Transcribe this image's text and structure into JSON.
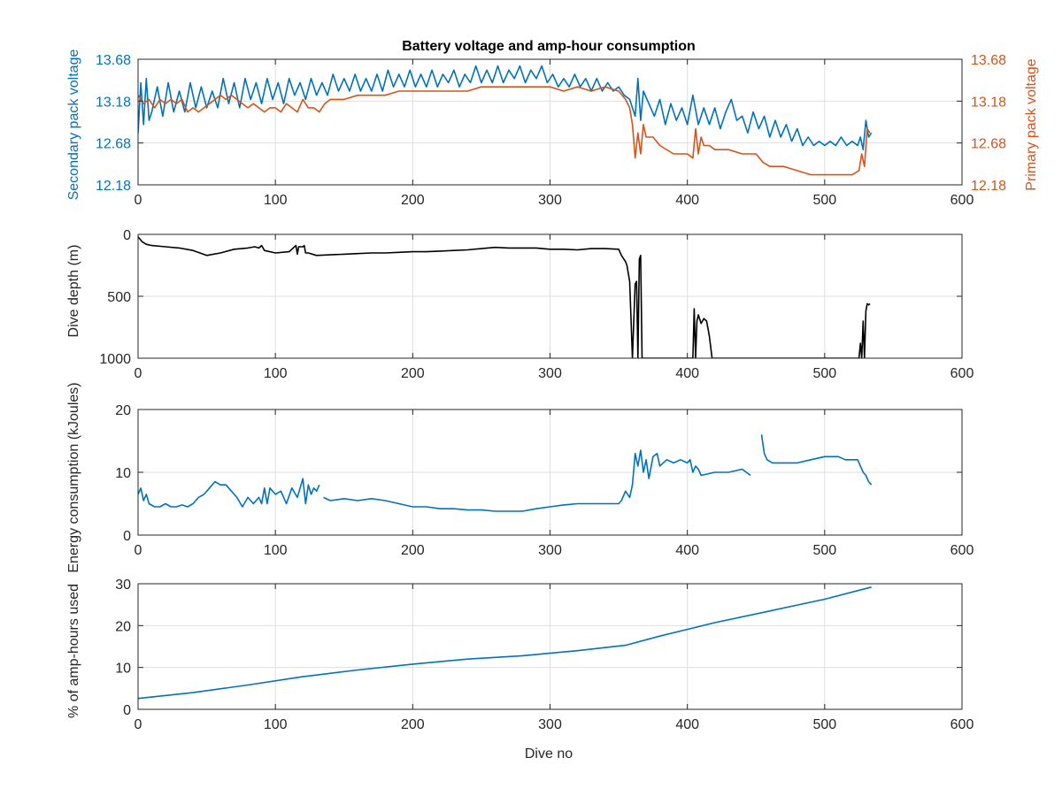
{
  "figure": {
    "title": "Battery voltage and amp-hour consumption",
    "xlabel": "Dive no"
  },
  "chart_data": [
    {
      "type": "line",
      "title": "Battery voltage and amp-hour consumption",
      "xlabel": "",
      "ylabel": "Secondary pack voltage",
      "ylabel_right": "Primary pack voltage",
      "xlim": [
        0,
        600
      ],
      "ylim": [
        12.18,
        13.68
      ],
      "xticks": [
        0,
        100,
        200,
        300,
        400,
        500,
        600
      ],
      "yticks": [
        12.18,
        12.68,
        13.18,
        13.68
      ],
      "yticks_right": [
        12.18,
        12.68,
        13.18,
        13.68
      ],
      "grid": true,
      "series": [
        {
          "axis": "left",
          "color": "#0072BD",
          "x": [
            0,
            2,
            4,
            6,
            8,
            10,
            14,
            18,
            22,
            26,
            30,
            34,
            38,
            42,
            46,
            50,
            54,
            58,
            62,
            66,
            70,
            74,
            78,
            82,
            86,
            90,
            94,
            98,
            102,
            106,
            110,
            114,
            118,
            122,
            126,
            130,
            134,
            138,
            142,
            146,
            150,
            154,
            158,
            162,
            166,
            170,
            174,
            178,
            182,
            186,
            190,
            194,
            198,
            202,
            206,
            210,
            214,
            218,
            222,
            226,
            230,
            234,
            238,
            242,
            246,
            250,
            254,
            258,
            262,
            266,
            270,
            274,
            278,
            282,
            286,
            290,
            294,
            298,
            302,
            306,
            310,
            314,
            318,
            322,
            326,
            330,
            334,
            338,
            342,
            346,
            350,
            354,
            358,
            362,
            364,
            366,
            368,
            372,
            376,
            380,
            384,
            388,
            392,
            396,
            400,
            404,
            408,
            412,
            416,
            420,
            424,
            428,
            432,
            436,
            440,
            444,
            448,
            452,
            456,
            460,
            464,
            468,
            472,
            476,
            480,
            484,
            488,
            492,
            496,
            500,
            504,
            508,
            512,
            516,
            520,
            524,
            526,
            528,
            530,
            532,
            534
          ],
          "y": [
            12.8,
            13.4,
            12.9,
            13.45,
            12.95,
            13.05,
            13.35,
            13.0,
            13.4,
            13.05,
            13.3,
            13.05,
            13.4,
            13.1,
            13.35,
            13.1,
            13.3,
            13.1,
            13.45,
            13.15,
            13.4,
            13.1,
            13.45,
            13.2,
            13.4,
            13.15,
            13.45,
            13.2,
            13.4,
            13.15,
            13.45,
            13.25,
            13.4,
            13.2,
            13.45,
            13.25,
            13.4,
            13.25,
            13.5,
            13.3,
            13.45,
            13.3,
            13.5,
            13.3,
            13.45,
            13.3,
            13.5,
            13.3,
            13.55,
            13.35,
            13.5,
            13.35,
            13.55,
            13.35,
            13.5,
            13.35,
            13.55,
            13.35,
            13.5,
            13.4,
            13.55,
            13.35,
            13.5,
            13.4,
            13.6,
            13.4,
            13.55,
            13.4,
            13.6,
            13.4,
            13.55,
            13.45,
            13.6,
            13.4,
            13.55,
            13.45,
            13.6,
            13.4,
            13.5,
            13.35,
            13.45,
            13.35,
            13.5,
            13.35,
            13.45,
            13.3,
            13.45,
            13.3,
            13.4,
            13.3,
            13.35,
            13.25,
            13.2,
            13.0,
            13.45,
            12.95,
            13.3,
            13.15,
            13.0,
            13.2,
            12.9,
            13.15,
            12.95,
            13.1,
            12.9,
            13.25,
            12.9,
            13.1,
            12.9,
            13.1,
            12.85,
            13.05,
            13.2,
            12.95,
            13.0,
            12.8,
            13.05,
            12.85,
            13.0,
            12.75,
            12.95,
            12.75,
            12.9,
            12.7,
            12.85,
            12.65,
            12.75,
            12.65,
            12.7,
            12.65,
            12.7,
            12.65,
            12.75,
            12.65,
            12.7,
            12.65,
            12.75,
            12.6,
            12.95,
            12.75,
            12.8
          ]
        },
        {
          "axis": "right",
          "color": "#D95319",
          "x": [
            0,
            4,
            8,
            12,
            16,
            20,
            24,
            28,
            32,
            36,
            40,
            44,
            48,
            52,
            56,
            60,
            64,
            68,
            72,
            76,
            80,
            84,
            88,
            92,
            96,
            100,
            104,
            108,
            112,
            116,
            120,
            124,
            128,
            132,
            136,
            140,
            150,
            160,
            170,
            180,
            190,
            200,
            210,
            220,
            230,
            240,
            250,
            260,
            270,
            280,
            290,
            300,
            310,
            320,
            330,
            340,
            350,
            355,
            358,
            360,
            362,
            364,
            366,
            368,
            370,
            375,
            380,
            390,
            395,
            400,
            404,
            406,
            408,
            410,
            412,
            416,
            420,
            430,
            440,
            450,
            455,
            460,
            470,
            480,
            490,
            500,
            510,
            520,
            525,
            527,
            529,
            531,
            533
          ],
          "y": [
            13.25,
            13.15,
            13.2,
            13.1,
            13.2,
            13.15,
            13.2,
            13.15,
            13.2,
            13.05,
            13.1,
            13.05,
            13.1,
            13.15,
            13.2,
            13.25,
            13.2,
            13.25,
            13.2,
            13.15,
            13.1,
            13.15,
            13.1,
            13.05,
            13.1,
            13.1,
            13.05,
            13.15,
            13.1,
            13.05,
            13.2,
            13.1,
            13.1,
            13.05,
            13.15,
            13.2,
            13.2,
            13.25,
            13.25,
            13.25,
            13.3,
            13.3,
            13.3,
            13.3,
            13.3,
            13.3,
            13.35,
            13.35,
            13.35,
            13.35,
            13.35,
            13.35,
            13.3,
            13.35,
            13.3,
            13.35,
            13.3,
            13.2,
            13.1,
            12.9,
            12.5,
            12.8,
            12.55,
            12.9,
            12.75,
            12.75,
            12.65,
            12.55,
            12.55,
            12.55,
            12.5,
            12.85,
            12.55,
            12.75,
            12.65,
            12.65,
            12.6,
            12.6,
            12.55,
            12.55,
            12.45,
            12.4,
            12.4,
            12.35,
            12.3,
            12.3,
            12.3,
            12.3,
            12.35,
            12.55,
            12.4,
            12.85,
            12.8
          ]
        }
      ]
    },
    {
      "type": "line",
      "title": "",
      "xlabel": "",
      "ylabel": "Dive depth (m)",
      "xlim": [
        0,
        600
      ],
      "ylim": [
        0,
        1000
      ],
      "y_reversed": true,
      "xticks": [
        0,
        100,
        200,
        300,
        400,
        500,
        600
      ],
      "yticks": [
        0,
        500,
        1000
      ],
      "grid": true,
      "series": [
        {
          "color": "#000000",
          "x": [
            0,
            3,
            6,
            10,
            20,
            30,
            40,
            50,
            60,
            70,
            80,
            85,
            88,
            90,
            92,
            100,
            110,
            115,
            116,
            117,
            120,
            121,
            122,
            124,
            130,
            140,
            150,
            160,
            170,
            180,
            190,
            200,
            210,
            220,
            230,
            240,
            250,
            260,
            270,
            280,
            290,
            300,
            310,
            320,
            330,
            340,
            350,
            352,
            355,
            356,
            358,
            360,
            362,
            363,
            364,
            365,
            366,
            367,
            368,
            369,
            370,
            380,
            390,
            400,
            404,
            405,
            406,
            407,
            408,
            410,
            412,
            414,
            416,
            418,
            420,
            430,
            440,
            450,
            460,
            470,
            480,
            490,
            500,
            510,
            515,
            520,
            523,
            525,
            526,
            527,
            528,
            529,
            530,
            531,
            532,
            533
          ],
          "y": [
            20,
            60,
            80,
            90,
            100,
            110,
            130,
            170,
            150,
            120,
            110,
            100,
            110,
            90,
            130,
            150,
            140,
            90,
            160,
            100,
            100,
            90,
            150,
            150,
            170,
            165,
            160,
            155,
            150,
            150,
            145,
            140,
            140,
            135,
            130,
            125,
            115,
            105,
            110,
            110,
            110,
            120,
            120,
            125,
            115,
            115,
            120,
            170,
            220,
            250,
            380,
            1000,
            400,
            380,
            1000,
            200,
            170,
            1000,
            1000,
            1000,
            1000,
            1000,
            1000,
            1000,
            1000,
            600,
            1000,
            700,
            650,
            720,
            680,
            700,
            820,
            1000,
            1000,
            1000,
            1000,
            1000,
            1000,
            1000,
            1000,
            1000,
            1000,
            1000,
            1000,
            1000,
            1000,
            1000,
            880,
            1000,
            700,
            1000,
            620,
            560,
            570,
            560
          ]
        }
      ]
    },
    {
      "type": "line",
      "title": "",
      "xlabel": "",
      "ylabel": "Energy consumption (kJoules)",
      "xlim": [
        0,
        600
      ],
      "ylim": [
        0,
        20
      ],
      "xticks": [
        0,
        100,
        200,
        300,
        400,
        500,
        600
      ],
      "yticks": [
        0,
        10,
        20
      ],
      "grid": true,
      "series": [
        {
          "color": "#0072BD",
          "segments": [
            {
              "x": [
                0,
                2,
                4,
                6,
                8,
                12,
                16,
                20,
                24,
                28,
                32,
                36,
                40,
                44,
                48,
                52,
                56,
                60,
                64,
                68,
                72,
                76,
                80,
                84,
                88,
                90,
                92,
                94,
                96,
                100,
                104,
                108,
                112,
                116,
                118,
                120,
                122,
                124,
                126,
                128,
                130,
                132
              ],
              "y": [
                6.5,
                7.5,
                5.5,
                6.5,
                5.0,
                4.5,
                4.5,
                5.0,
                4.5,
                4.5,
                4.8,
                4.5,
                5.0,
                6.0,
                6.5,
                7.5,
                8.5,
                8.0,
                8.0,
                7.0,
                6.0,
                4.5,
                6.0,
                5.0,
                6.0,
                5.0,
                7.5,
                5.0,
                7.5,
                6.5,
                7.0,
                5.0,
                7.5,
                6.0,
                7.5,
                9.0,
                5.0,
                8.0,
                6.5,
                7.5,
                7.0,
                8.0
              ]
            },
            {
              "x": [
                135,
                140,
                150,
                160,
                170,
                180,
                190,
                200,
                210,
                220,
                230,
                240,
                250,
                260,
                270,
                280,
                290,
                300,
                310,
                320,
                330,
                340,
                350,
                352,
                355,
                358,
                360,
                362,
                364,
                366,
                368,
                370,
                372,
                375,
                378,
                380,
                385,
                390,
                395,
                400,
                402,
                404,
                406,
                408,
                410,
                420,
                430,
                440,
                446
              ],
              "y": [
                6.0,
                5.5,
                5.8,
                5.5,
                5.8,
                5.5,
                5.0,
                4.5,
                4.5,
                4.2,
                4.2,
                4.0,
                4.0,
                3.8,
                3.8,
                3.8,
                4.2,
                4.5,
                4.8,
                5.0,
                5.0,
                5.0,
                5.0,
                5.5,
                7.0,
                6.0,
                8.0,
                13.0,
                11.0,
                13.5,
                10.0,
                12.0,
                9.0,
                12.5,
                13.0,
                11.0,
                12.0,
                11.5,
                12.0,
                11.5,
                12.0,
                10.0,
                11.0,
                10.5,
                9.5,
                10.0,
                10.0,
                10.5,
                9.5
              ]
            },
            {
              "x": [
                454,
                456,
                458,
                462,
                470,
                480,
                490,
                500,
                505,
                510,
                515,
                520,
                524,
                526,
                528,
                530,
                532,
                534
              ],
              "y": [
                16.0,
                13.0,
                12.0,
                11.5,
                11.5,
                11.5,
                12.0,
                12.5,
                12.5,
                12.5,
                12.0,
                12.0,
                12.0,
                11.0,
                10.0,
                9.5,
                8.5,
                8.0
              ]
            }
          ]
        }
      ]
    },
    {
      "type": "line",
      "title": "",
      "xlabel": "Dive no",
      "ylabel": "% of amp-hours used",
      "xlim": [
        0,
        600
      ],
      "ylim": [
        0,
        30
      ],
      "xticks": [
        0,
        100,
        200,
        300,
        400,
        500,
        600
      ],
      "yticks": [
        0,
        10,
        20,
        30
      ],
      "grid": true,
      "series": [
        {
          "color": "#0072BD",
          "x": [
            0,
            40,
            80,
            120,
            160,
            200,
            240,
            280,
            320,
            355,
            380,
            420,
            460,
            500,
            534
          ],
          "y": [
            2.6,
            4.0,
            5.8,
            7.8,
            9.4,
            10.8,
            12.0,
            12.8,
            14.0,
            15.3,
            17.5,
            20.7,
            23.5,
            26.3,
            29.2
          ]
        }
      ]
    }
  ]
}
